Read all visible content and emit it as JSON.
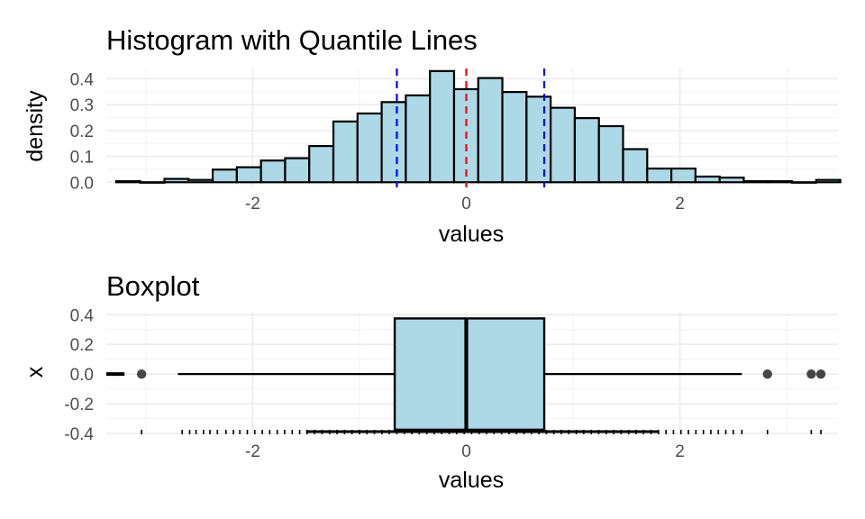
{
  "chart_data": [
    {
      "type": "histogram",
      "title": "Histogram with Quantile Lines",
      "xlabel": "values",
      "ylabel": "density",
      "xlim": [
        -3.37,
        3.48
      ],
      "ylim": [
        -0.02,
        0.44
      ],
      "x_ticks": [
        -2,
        0,
        2
      ],
      "y_ticks": [
        0.0,
        0.1,
        0.2,
        0.3,
        0.4
      ],
      "y_tick_labels": [
        "0.0",
        "0.1",
        "0.2",
        "0.3",
        "0.4"
      ],
      "bar_fill": "#add8e6",
      "bar_outline": "#000000",
      "bin_width": 0.226,
      "bins": [
        {
          "x": -3.165,
          "density": 0.004
        },
        {
          "x": -2.939,
          "density": 0.0
        },
        {
          "x": -2.713,
          "density": 0.013
        },
        {
          "x": -2.487,
          "density": 0.009
        },
        {
          "x": -2.261,
          "density": 0.049
        },
        {
          "x": -2.035,
          "density": 0.058
        },
        {
          "x": -1.809,
          "density": 0.084
        },
        {
          "x": -1.583,
          "density": 0.093
        },
        {
          "x": -1.357,
          "density": 0.14
        },
        {
          "x": -1.131,
          "density": 0.235
        },
        {
          "x": -0.905,
          "density": 0.266
        },
        {
          "x": -0.679,
          "density": 0.31
        },
        {
          "x": -0.453,
          "density": 0.336
        },
        {
          "x": -0.227,
          "density": 0.43
        },
        {
          "x": -0.001,
          "density": 0.36
        },
        {
          "x": 0.225,
          "density": 0.403
        },
        {
          "x": 0.451,
          "density": 0.349
        },
        {
          "x": 0.677,
          "density": 0.331
        },
        {
          "x": 0.903,
          "density": 0.288
        },
        {
          "x": 1.129,
          "density": 0.248
        },
        {
          "x": 1.355,
          "density": 0.217
        },
        {
          "x": 1.581,
          "density": 0.128
        },
        {
          "x": 1.807,
          "density": 0.053
        },
        {
          "x": 2.033,
          "density": 0.053
        },
        {
          "x": 2.259,
          "density": 0.022
        },
        {
          "x": 2.485,
          "density": 0.018
        },
        {
          "x": 2.711,
          "density": 0.004
        },
        {
          "x": 2.937,
          "density": 0.004
        },
        {
          "x": 3.163,
          "density": 0.0
        },
        {
          "x": 3.389,
          "density": 0.009
        }
      ],
      "vlines": [
        {
          "name": "25th percentile",
          "x": -0.65,
          "color": "#0000ff",
          "linetype": "dashed"
        },
        {
          "name": "median",
          "x": 0.0,
          "color": "#ff0000",
          "linetype": "dashed"
        },
        {
          "name": "75th percentile",
          "x": 0.73,
          "color": "#0000ff",
          "linetype": "dashed"
        }
      ],
      "grid": true
    },
    {
      "type": "boxplot",
      "title": "Boxplot",
      "xlabel": "values",
      "ylabel": "x",
      "xlim": [
        -3.37,
        3.48
      ],
      "ylim": [
        -0.4,
        0.42
      ],
      "x_ticks": [
        -2,
        0,
        2
      ],
      "y_ticks": [
        -0.4,
        -0.2,
        0.0,
        0.2,
        0.4
      ],
      "y_tick_labels": [
        "-0.4",
        "-0.2",
        "0.0",
        "0.2",
        "0.4"
      ],
      "box_fill": "#add8e6",
      "y_position": 0.0,
      "box_halfwidth": 0.375,
      "lower_whisker": -2.7,
      "q1": -0.67,
      "median": 0.0,
      "q3": 0.73,
      "upper_whisker": 2.58,
      "outliers": [
        -3.04,
        2.82,
        3.23,
        3.32
      ],
      "left_stub": [
        -3.37,
        -3.2
      ],
      "rug_marks": [
        -3.04,
        -2.66,
        -2.59,
        -2.53,
        -2.46,
        -2.4,
        -2.33,
        -2.25,
        -2.18,
        -2.12,
        -2.05,
        -1.98,
        -1.91,
        -1.84,
        -1.77,
        -1.7,
        -1.63,
        -1.56,
        -1.49,
        -1.42,
        -1.35,
        -1.28,
        -1.21,
        -1.14,
        -1.07,
        -1.0,
        -0.93,
        -0.86,
        -0.79,
        -0.72,
        -0.65,
        -0.58,
        -0.51,
        -0.44,
        -0.37,
        -0.3,
        -0.23,
        -0.16,
        -0.09,
        -0.02,
        0.05,
        0.12,
        0.19,
        0.26,
        0.33,
        0.4,
        0.47,
        0.54,
        0.61,
        0.68,
        0.75,
        0.82,
        0.89,
        0.96,
        1.03,
        1.1,
        1.17,
        1.24,
        1.31,
        1.38,
        1.45,
        1.52,
        1.59,
        1.66,
        1.73,
        1.8,
        1.87,
        1.94,
        2.01,
        2.08,
        2.15,
        2.22,
        2.29,
        2.36,
        2.43,
        2.5,
        2.58,
        2.82,
        3.23,
        3.32
      ],
      "grid": true
    }
  ]
}
